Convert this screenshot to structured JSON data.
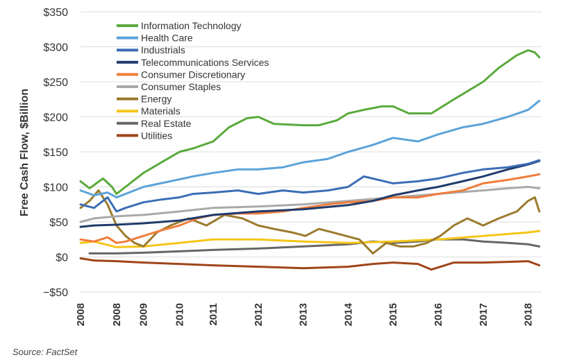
{
  "source_note": "Source: FactSet",
  "chart_data": {
    "type": "line",
    "title": "",
    "xlabel": "",
    "ylabel": "Free Cash Flow, $Billion",
    "ylim": [
      -50,
      350
    ],
    "yticks": [
      -50,
      0,
      50,
      100,
      150,
      200,
      250,
      300,
      350
    ],
    "ytick_labels": [
      "−$50",
      "$0",
      "$50",
      "$100",
      "$150",
      "$200",
      "$250",
      "$300",
      "$350"
    ],
    "xlim": [
      2008.0,
      2018.25
    ],
    "xticks": [
      2008.0,
      2008.8,
      2009.4,
      2010.2,
      2010.95,
      2011.95,
      2012.95,
      2013.95,
      2014.95,
      2015.95,
      2016.95,
      2017.95
    ],
    "xtick_labels": [
      "2008",
      "2008",
      "2009",
      "2010",
      "2011",
      "2012",
      "2013",
      "2014",
      "2015",
      "2016",
      "2017",
      "2018"
    ],
    "grid": "horizontal",
    "legend_position": "top-left",
    "series": [
      {
        "name": "Information Technology",
        "color": "#5aaa3c",
        "x": [
          2008.0,
          2008.2,
          2008.5,
          2008.7,
          2008.8,
          2009.0,
          2009.4,
          2009.8,
          2010.2,
          2010.5,
          2010.95,
          2011.3,
          2011.7,
          2011.95,
          2012.3,
          2012.95,
          2013.3,
          2013.7,
          2013.95,
          2014.3,
          2014.7,
          2014.95,
          2015.3,
          2015.8,
          2016.3,
          2016.95,
          2017.3,
          2017.7,
          2017.95,
          2018.1,
          2018.2
        ],
        "y": [
          108,
          98,
          112,
          100,
          90,
          100,
          120,
          135,
          150,
          155,
          165,
          185,
          198,
          200,
          190,
          188,
          188,
          195,
          205,
          210,
          215,
          215,
          205,
          205,
          225,
          250,
          270,
          288,
          295,
          292,
          285
        ]
      },
      {
        "name": "Health Care",
        "color": "#5ba3d9",
        "x": [
          2008.0,
          2008.3,
          2008.6,
          2008.8,
          2009.0,
          2009.4,
          2010.0,
          2010.5,
          2010.95,
          2011.5,
          2011.95,
          2012.5,
          2012.95,
          2013.5,
          2013.95,
          2014.5,
          2014.95,
          2015.5,
          2015.95,
          2016.5,
          2016.95,
          2017.5,
          2017.95,
          2018.2
        ],
        "y": [
          95,
          88,
          92,
          85,
          90,
          100,
          108,
          115,
          120,
          125,
          125,
          128,
          135,
          140,
          150,
          160,
          170,
          165,
          175,
          185,
          190,
          200,
          210,
          223
        ]
      },
      {
        "name": "Industrials",
        "color": "#3b6db5",
        "x": [
          2008.0,
          2008.3,
          2008.6,
          2008.8,
          2009.0,
          2009.4,
          2009.8,
          2010.2,
          2010.5,
          2010.95,
          2011.5,
          2011.95,
          2012.5,
          2012.95,
          2013.5,
          2013.95,
          2014.3,
          2014.95,
          2015.5,
          2015.95,
          2016.5,
          2016.95,
          2017.5,
          2017.95,
          2018.2
        ],
        "y": [
          75,
          70,
          85,
          65,
          70,
          78,
          82,
          85,
          90,
          92,
          95,
          90,
          95,
          92,
          95,
          100,
          115,
          105,
          108,
          112,
          120,
          125,
          128,
          133,
          138
        ]
      },
      {
        "name": "Telecommunications Services",
        "color": "#1f3a6b",
        "x": [
          2008.0,
          2008.3,
          2008.8,
          2009.4,
          2010.2,
          2010.95,
          2011.95,
          2012.95,
          2013.95,
          2014.5,
          2014.95,
          2015.5,
          2015.95,
          2016.5,
          2016.95,
          2017.5,
          2017.95,
          2018.2
        ],
        "y": [
          43,
          45,
          46,
          48,
          52,
          60,
          65,
          68,
          74,
          80,
          88,
          95,
          100,
          108,
          115,
          125,
          132,
          137
        ]
      },
      {
        "name": "Consumer Discretionary",
        "color": "#f07d3a",
        "x": [
          2008.0,
          2008.3,
          2008.6,
          2008.8,
          2009.0,
          2009.4,
          2009.8,
          2010.2,
          2010.6,
          2010.95,
          2011.5,
          2011.95,
          2012.5,
          2012.95,
          2013.5,
          2013.95,
          2014.5,
          2014.95,
          2015.5,
          2015.95,
          2016.5,
          2016.95,
          2017.5,
          2017.95,
          2018.2
        ],
        "y": [
          25,
          22,
          28,
          20,
          22,
          30,
          38,
          45,
          55,
          60,
          62,
          62,
          65,
          70,
          75,
          78,
          80,
          85,
          85,
          90,
          95,
          105,
          110,
          115,
          118
        ]
      },
      {
        "name": "Consumer Staples",
        "color": "#a9a9a9",
        "x": [
          2008.0,
          2008.3,
          2008.8,
          2009.4,
          2010.2,
          2010.95,
          2011.95,
          2012.95,
          2013.95,
          2014.95,
          2015.95,
          2016.95,
          2017.5,
          2017.95,
          2018.2
        ],
        "y": [
          50,
          55,
          58,
          60,
          65,
          70,
          72,
          75,
          80,
          85,
          90,
          95,
          98,
          100,
          98
        ]
      },
      {
        "name": "Energy",
        "color": "#9b7a2c",
        "x": [
          2008.0,
          2008.2,
          2008.4,
          2008.6,
          2008.8,
          2009.0,
          2009.2,
          2009.4,
          2009.7,
          2010.0,
          2010.4,
          2010.8,
          2011.2,
          2011.6,
          2011.95,
          2012.3,
          2012.7,
          2013.0,
          2013.3,
          2013.6,
          2013.9,
          2014.2,
          2014.5,
          2014.8,
          2015.1,
          2015.4,
          2015.7,
          2016.0,
          2016.3,
          2016.6,
          2016.95,
          2017.3,
          2017.7,
          2017.95,
          2018.1,
          2018.2
        ],
        "y": [
          70,
          80,
          95,
          75,
          45,
          30,
          20,
          15,
          35,
          45,
          55,
          45,
          60,
          55,
          45,
          40,
          35,
          30,
          40,
          35,
          30,
          25,
          5,
          20,
          15,
          15,
          20,
          30,
          45,
          55,
          45,
          55,
          65,
          80,
          85,
          65
        ]
      },
      {
        "name": "Materials",
        "color": "#f5c518",
        "x": [
          2008.0,
          2008.3,
          2008.8,
          2009.4,
          2010.2,
          2010.95,
          2011.95,
          2012.95,
          2013.95,
          2014.95,
          2015.95,
          2016.95,
          2017.95,
          2018.2
        ],
        "y": [
          20,
          22,
          14,
          15,
          20,
          25,
          25,
          22,
          20,
          22,
          25,
          30,
          35,
          37
        ]
      },
      {
        "name": "Real Estate",
        "color": "#666666",
        "x": [
          2008.2,
          2008.8,
          2009.4,
          2010.2,
          2010.95,
          2011.95,
          2012.95,
          2013.95,
          2014.5,
          2014.95,
          2015.5,
          2015.95,
          2016.5,
          2016.95,
          2017.5,
          2017.95,
          2018.2
        ],
        "y": [
          5,
          5,
          6,
          8,
          10,
          12,
          15,
          18,
          22,
          20,
          22,
          25,
          25,
          22,
          20,
          18,
          15
        ]
      },
      {
        "name": "Utilities",
        "color": "#a0441a",
        "x": [
          2008.0,
          2008.3,
          2008.8,
          2009.4,
          2010.2,
          2010.95,
          2011.95,
          2012.95,
          2013.95,
          2014.5,
          2014.95,
          2015.5,
          2015.8,
          2016.3,
          2016.95,
          2017.5,
          2017.95,
          2018.2
        ],
        "y": [
          -2,
          -5,
          -6,
          -8,
          -10,
          -12,
          -14,
          -16,
          -14,
          -10,
          -8,
          -10,
          -18,
          -8,
          -8,
          -7,
          -6,
          -12
        ]
      }
    ]
  }
}
